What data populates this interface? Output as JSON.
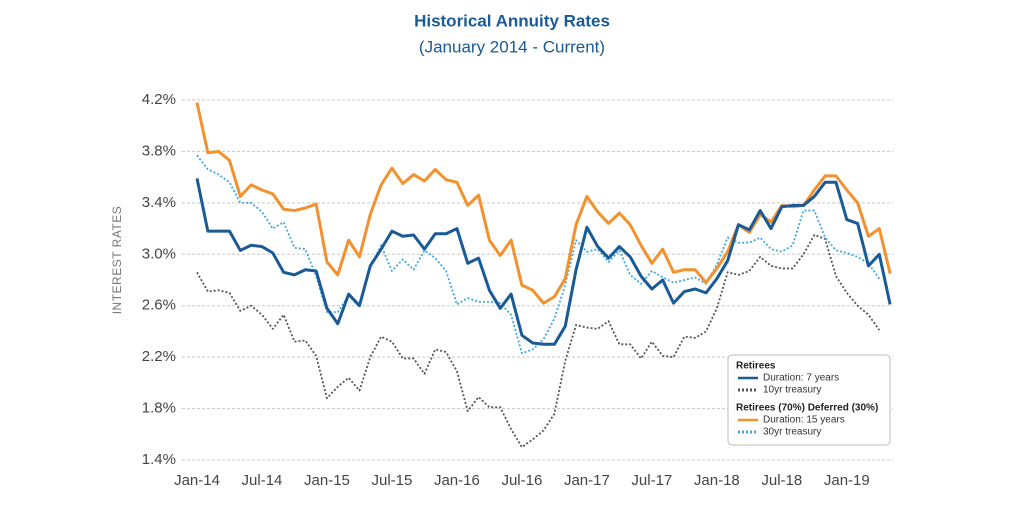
{
  "chart_data": {
    "type": "line",
    "title": "Historical Annuity Rates",
    "subtitle": "(January 2014 - Current)",
    "y_label": "INTEREST RATES",
    "categories": [
      "Jan-14",
      null,
      null,
      null,
      null,
      null,
      "Jul-14",
      null,
      null,
      null,
      null,
      null,
      "Jan-15",
      null,
      null,
      null,
      null,
      null,
      "Jul-15",
      null,
      null,
      null,
      null,
      null,
      "Jan-16",
      null,
      null,
      null,
      null,
      null,
      "Jul-16",
      null,
      null,
      null,
      null,
      null,
      "Jan-17",
      null,
      null,
      null,
      null,
      null,
      "Jul-17",
      null,
      null,
      null,
      null,
      null,
      "Jan-18",
      null,
      null,
      null,
      null,
      null,
      "Jul-18",
      null,
      null,
      null,
      null,
      null,
      "Jan-19",
      null,
      null,
      null,
      null
    ],
    "ylim": [
      1.4,
      4.2
    ],
    "yticks": [
      {
        "value": 1.4,
        "label": "1.4%"
      },
      {
        "value": 1.8,
        "label": "1.8%"
      },
      {
        "value": 2.2,
        "label": "2.2%"
      },
      {
        "value": 2.6,
        "label": "2.6%"
      },
      {
        "value": 3.0,
        "label": "3.0%"
      },
      {
        "value": 3.4,
        "label": "3.4%"
      },
      {
        "value": 3.8,
        "label": "3.8%"
      },
      {
        "value": 4.2,
        "label": "4.2%"
      }
    ],
    "grid": true,
    "legend_titles": [
      "Retirees",
      "Retirees (70%) Deferred (30%)"
    ],
    "legend_position": "lower right",
    "series": [
      {
        "name": "Duration: 7 years",
        "color": "#1a5a96",
        "style": "solid",
        "values": [
          3.59,
          3.18,
          3.18,
          3.18,
          3.03,
          3.07,
          3.06,
          3.01,
          2.86,
          2.84,
          2.88,
          2.87,
          2.58,
          2.46,
          2.69,
          2.6,
          2.91,
          3.04,
          3.18,
          3.14,
          3.15,
          3.04,
          3.16,
          3.16,
          3.2,
          2.93,
          2.97,
          2.72,
          2.58,
          2.69,
          2.37,
          2.31,
          2.3,
          2.3,
          2.44,
          2.88,
          3.21,
          3.06,
          2.97,
          3.06,
          2.98,
          2.83,
          2.73,
          2.8,
          2.62,
          2.71,
          2.73,
          2.7,
          2.81,
          2.95,
          3.23,
          3.19,
          3.34,
          3.2,
          3.37,
          3.38,
          3.38,
          3.45,
          3.56,
          3.56,
          3.27,
          3.24,
          2.91,
          3.0,
          2.61
        ]
      },
      {
        "name": "10yr treasury",
        "color": "#555555",
        "style": "dotted",
        "values": [
          2.86,
          2.71,
          2.72,
          2.7,
          2.56,
          2.6,
          2.53,
          2.42,
          2.53,
          2.32,
          2.33,
          2.21,
          1.88,
          1.97,
          2.04,
          1.94,
          2.2,
          2.36,
          2.32,
          2.19,
          2.19,
          2.07,
          2.26,
          2.24,
          2.09,
          1.78,
          1.89,
          1.81,
          1.81,
          1.64,
          1.5,
          1.56,
          1.63,
          1.76,
          2.17,
          2.45,
          2.43,
          2.42,
          2.48,
          2.3,
          2.3,
          2.19,
          2.32,
          2.21,
          2.2,
          2.36,
          2.35,
          2.4,
          2.58,
          2.86,
          2.84,
          2.87,
          2.98,
          2.91,
          2.89,
          2.89,
          3.0,
          3.15,
          3.12,
          2.83,
          2.7,
          2.6,
          2.53,
          2.41,
          null
        ]
      },
      {
        "name": "Duration: 15 years",
        "color": "#f4912f",
        "style": "solid",
        "values": [
          4.18,
          3.79,
          3.8,
          3.73,
          3.45,
          3.54,
          3.5,
          3.47,
          3.35,
          3.34,
          3.36,
          3.39,
          2.94,
          2.84,
          3.11,
          2.98,
          3.31,
          3.54,
          3.67,
          3.55,
          3.62,
          3.57,
          3.66,
          3.58,
          3.56,
          3.38,
          3.46,
          3.11,
          2.99,
          3.11,
          2.76,
          2.72,
          2.62,
          2.67,
          2.81,
          3.23,
          3.45,
          3.33,
          3.24,
          3.32,
          3.23,
          3.07,
          2.93,
          3.04,
          2.86,
          2.88,
          2.88,
          2.78,
          2.89,
          3.02,
          3.23,
          3.17,
          3.31,
          3.25,
          3.38,
          3.37,
          3.38,
          3.5,
          3.61,
          3.61,
          3.5,
          3.4,
          3.14,
          3.2,
          2.85
        ]
      },
      {
        "name": "30yr treasury",
        "color": "#3fa9e0",
        "style": "dotted",
        "values": [
          3.77,
          3.66,
          3.62,
          3.56,
          3.4,
          3.4,
          3.33,
          3.2,
          3.25,
          3.05,
          3.04,
          2.83,
          2.55,
          2.55,
          2.68,
          2.59,
          2.9,
          3.07,
          2.87,
          2.96,
          2.88,
          3.03,
          2.97,
          2.87,
          2.61,
          2.66,
          2.63,
          2.63,
          2.62,
          2.53,
          2.23,
          2.26,
          2.34,
          2.5,
          2.76,
          3.11,
          3.02,
          3.04,
          2.94,
          3.03,
          2.84,
          2.77,
          2.87,
          2.82,
          2.78,
          2.8,
          2.82,
          2.77,
          2.92,
          3.13,
          3.09,
          3.09,
          3.13,
          3.04,
          3.02,
          3.07,
          3.34,
          3.34,
          3.13,
          3.03,
          3.01,
          2.98,
          2.93,
          2.81,
          null
        ]
      }
    ]
  }
}
